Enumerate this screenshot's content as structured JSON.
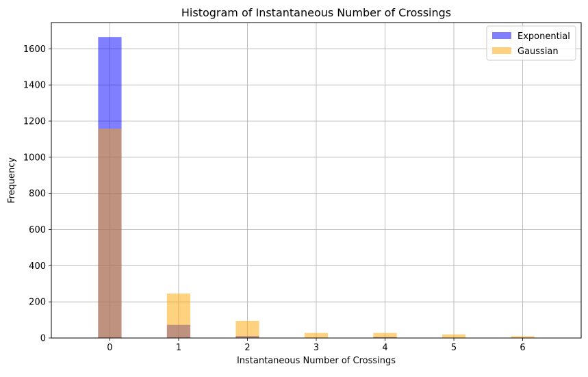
{
  "chart_data": {
    "type": "bar",
    "title": "Histogram of Instantaneous Number of Crossings",
    "xlabel": "Instantaneous Number of Crossings",
    "ylabel": "Frequency",
    "x_categories": [
      0,
      1,
      2,
      3,
      4,
      5,
      6
    ],
    "xlim": [
      -0.85,
      6.85
    ],
    "ylim": [
      0,
      1745
    ],
    "yticks": [
      0,
      200,
      400,
      600,
      800,
      1000,
      1200,
      1400,
      1600
    ],
    "grid": true,
    "legend_position": "top-right",
    "series": [
      {
        "name": "Exponential",
        "color": "#0000ff",
        "alpha": 0.5,
        "x": [
          0,
          1,
          2,
          3,
          4,
          5,
          6
        ],
        "values": [
          1665,
          73,
          11,
          2,
          5,
          1,
          1
        ]
      },
      {
        "name": "Gaussian",
        "color": "#ffa500",
        "alpha": 0.5,
        "x": [
          0,
          1,
          2,
          3,
          4,
          5,
          6
        ],
        "values": [
          1158,
          246,
          95,
          28,
          28,
          20,
          10
        ]
      }
    ]
  }
}
